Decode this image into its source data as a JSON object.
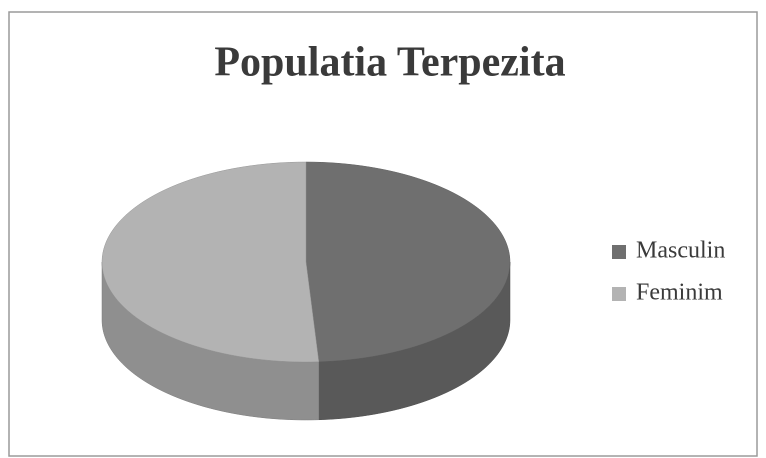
{
  "chart_data": {
    "type": "pie",
    "title": "Populatia Terpezita",
    "categories": [
      "Masculin",
      "Feminim"
    ],
    "values": [
      49,
      51
    ],
    "colors": [
      "#6f6f6f",
      "#b3b3b3"
    ],
    "legend": "right"
  }
}
